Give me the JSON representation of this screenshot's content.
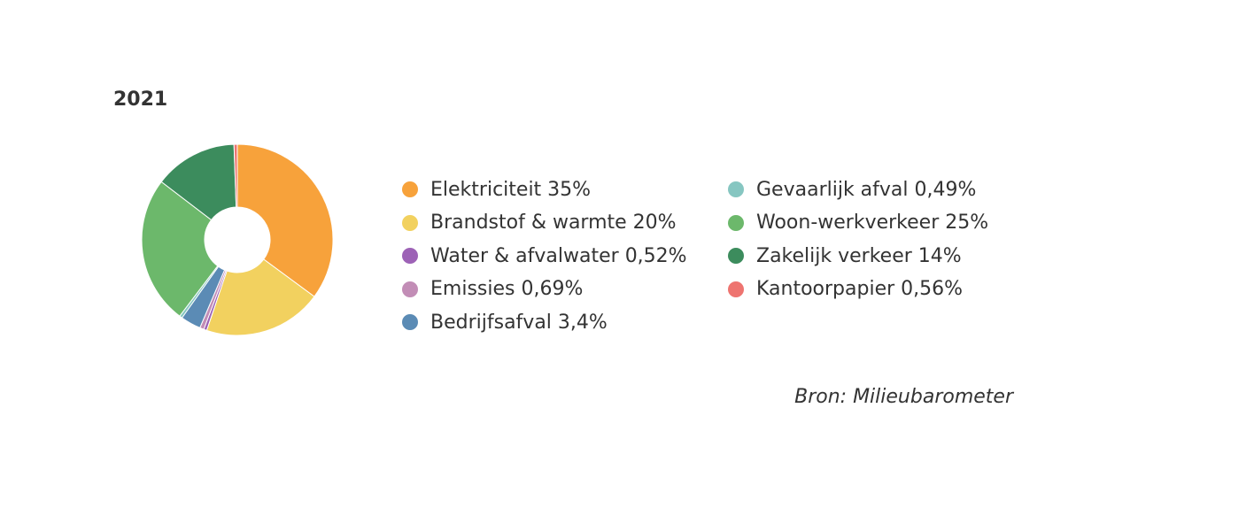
{
  "chart_data": {
    "type": "pie",
    "title": "2021",
    "donut": true,
    "legend_position": "right",
    "slices": [
      {
        "label": "Elektriciteit",
        "value": 35,
        "value_label": "35%",
        "color": "#f7a23b"
      },
      {
        "label": "Brandstof & warmte",
        "value": 20,
        "value_label": "20%",
        "color": "#f2d15f"
      },
      {
        "label": "Water & afvalwater",
        "value": 0.52,
        "value_label": "0,52%",
        "color": "#9d62b6"
      },
      {
        "label": "Emissies",
        "value": 0.69,
        "value_label": "0,69%",
        "color": "#c28db6"
      },
      {
        "label": "Bedrijfsafval",
        "value": 3.4,
        "value_label": "3,4%",
        "color": "#5b8bb5"
      },
      {
        "label": "Gevaarlijk afval",
        "value": 0.49,
        "value_label": "0,49%",
        "color": "#86c6c1"
      },
      {
        "label": "Woon-werkverkeer",
        "value": 25,
        "value_label": "25%",
        "color": "#6cb86b"
      },
      {
        "label": "Zakelijk verkeer",
        "value": 14,
        "value_label": "14%",
        "color": "#3c8c5d"
      },
      {
        "label": "Kantoorpapier",
        "value": 0.56,
        "value_label": "0,56%",
        "color": "#ee7470"
      }
    ]
  },
  "source_note": "Bron: Milieubarometer"
}
